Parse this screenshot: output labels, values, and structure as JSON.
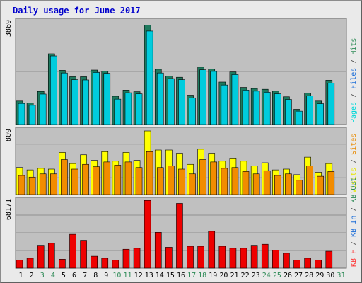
{
  "chart_data": {
    "type": "bar",
    "title": "Daily usage for June 2017",
    "categories": [
      "1",
      "2",
      "3",
      "4",
      "5",
      "6",
      "7",
      "8",
      "9",
      "10",
      "11",
      "12",
      "13",
      "14",
      "15",
      "16",
      "17",
      "18",
      "19",
      "20",
      "21",
      "22",
      "23",
      "24",
      "25",
      "26",
      "27",
      "28",
      "29",
      "30",
      "31"
    ],
    "weekend_days": [
      "3",
      "4",
      "10",
      "11",
      "17",
      "18",
      "24",
      "25",
      "31"
    ],
    "panels": [
      {
        "name": "hits-pages-files",
        "max_label": "3869",
        "ylim": [
          0,
          3869
        ],
        "grid": true,
        "legend": [
          {
            "text": "Pages",
            "color": "#00d8d8"
          },
          {
            "text": " / ",
            "color": "#404040"
          },
          {
            "text": "Files",
            "color": "#1e6fd8"
          },
          {
            "text": " / ",
            "color": "#404040"
          },
          {
            "text": "Hits",
            "color": "#2e8b57"
          }
        ],
        "series": [
          {
            "name": "Hits",
            "color": "#1e7a5e",
            "values": [
              880,
              810,
              1240,
              2650,
              2030,
              1790,
              1790,
              2040,
              2000,
              1060,
              1290,
              1230,
              3720,
              2070,
              1820,
              1770,
              1100,
              2150,
              2080,
              1590,
              1970,
              1390,
              1350,
              1320,
              1250,
              1040,
              570,
              1180,
              880,
              1660,
              0
            ]
          },
          {
            "name": "Files",
            "color": "#1e6fd8",
            "values": []
          },
          {
            "name": "Pages",
            "color": "#00ccdd",
            "values": [
              790,
              720,
              1140,
              2570,
              1930,
              1680,
              1670,
              1950,
              1920,
              950,
              1190,
              1150,
              3500,
              1930,
              1720,
              1680,
              1000,
              2050,
              1990,
              1480,
              1870,
              1290,
              1250,
              1210,
              1150,
              940,
              500,
              1070,
              780,
              1550,
              0
            ]
          }
        ]
      },
      {
        "name": "sites-visits",
        "max_label": "809",
        "ylim": [
          0,
          809
        ],
        "grid": true,
        "legend": [
          {
            "text": "Visits",
            "color": "#e6e600"
          },
          {
            "text": " / ",
            "color": "#404040"
          },
          {
            "text": "Sites",
            "color": "#e88a00"
          }
        ],
        "series": [
          {
            "name": "Visits",
            "color": "#ffff00",
            "values": [
              340,
              310,
              330,
              320,
              530,
              390,
              500,
              430,
              540,
              420,
              530,
              430,
              800,
              560,
              560,
              520,
              380,
              570,
              520,
              420,
              450,
              420,
              360,
              400,
              310,
              320,
              250,
              470,
              280,
              390,
              0
            ]
          },
          {
            "name": "Sites",
            "color": "#f28c00",
            "values": [
              240,
              220,
              260,
              260,
              440,
              320,
              380,
              350,
              410,
              370,
              410,
              340,
              540,
              340,
              360,
              320,
              260,
              440,
              410,
              330,
              340,
              290,
              260,
              300,
              240,
              260,
              180,
              360,
              230,
              290,
              0
            ]
          }
        ]
      },
      {
        "name": "kbytes",
        "max_label": "68171",
        "ylim": [
          0,
          68171
        ],
        "grid": true,
        "legend": [
          {
            "text": "KB F",
            "color": "#ff3030"
          },
          {
            "text": " / ",
            "color": "#404040"
          },
          {
            "text": "KB In",
            "color": "#1e6fd8"
          },
          {
            "text": " / ",
            "color": "#404040"
          },
          {
            "text": "KB Out",
            "color": "#2e8b57"
          }
        ],
        "series": [
          {
            "name": "KB F",
            "color": "#ee0000",
            "values": [
              8000,
              10000,
              23000,
              25000,
              9000,
              34000,
              28000,
              12000,
              10000,
              8000,
              19000,
              20000,
              68000,
              36000,
              21000,
              65000,
              22000,
              22000,
              37000,
              22000,
              20000,
              20000,
              23000,
              24000,
              18000,
              15000,
              8000,
              10000,
              8000,
              17000,
              0
            ]
          },
          {
            "name": "KB In",
            "color": "#1e6fd8",
            "values": []
          },
          {
            "name": "KB Out",
            "color": "#2e8b57",
            "values": []
          }
        ]
      }
    ]
  }
}
